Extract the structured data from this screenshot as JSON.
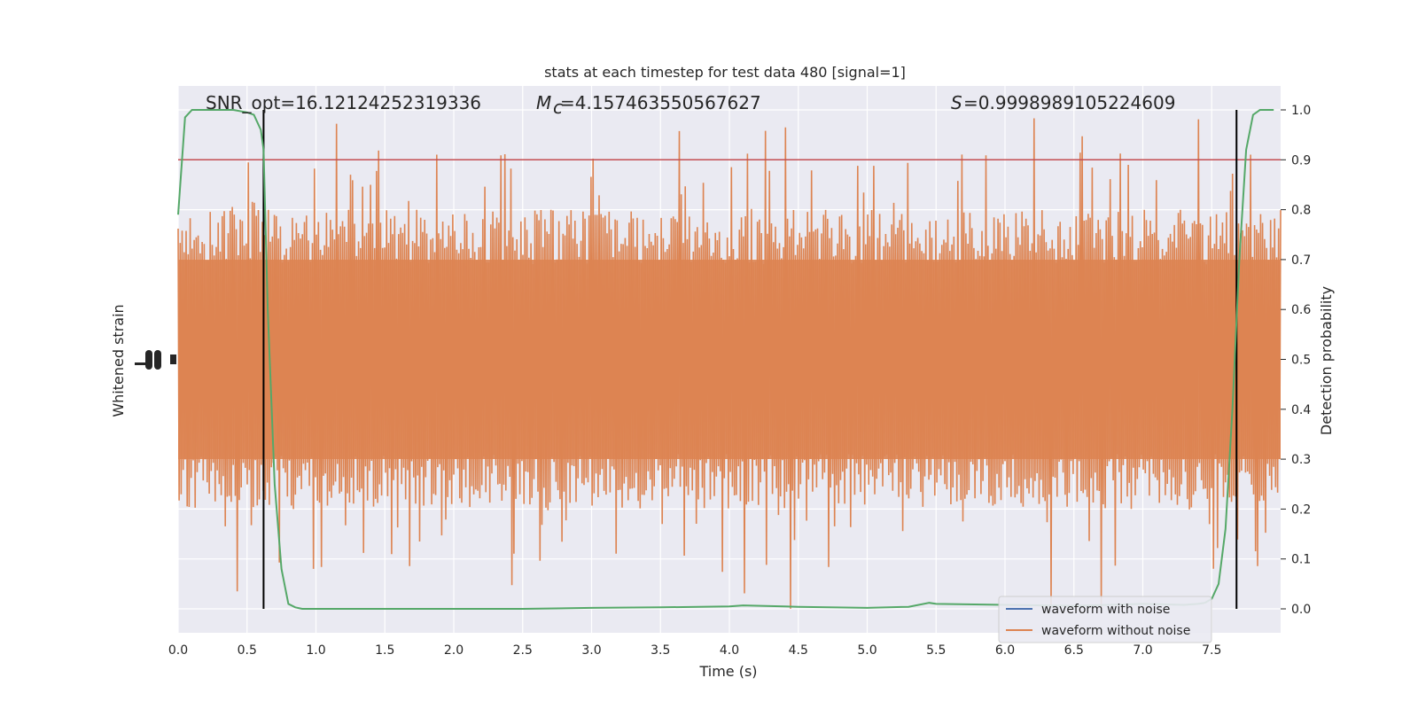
{
  "chart_data": {
    "type": "line",
    "title": "stats at each timestep for test data 480 [signal=1]",
    "annotations": {
      "snr": "SNR_opt=16.12124252319336",
      "mc": "=4.157463550567627",
      "s": "=0.9998989105224609"
    },
    "xlabel": "Time (s)",
    "ylabel_left": "Whitened strain",
    "ylabel_right": "Detection probability",
    "xlim": [
      0.0,
      8.0
    ],
    "ylim_right": [
      -0.05,
      1.05
    ],
    "xticks": [
      "0.0",
      "0.5",
      "1.0",
      "1.5",
      "2.0",
      "2.5",
      "3.0",
      "3.5",
      "4.0",
      "4.5",
      "5.0",
      "5.5",
      "6.0",
      "6.5",
      "7.0",
      "7.5"
    ],
    "yticks_right": [
      "0.0",
      "0.1",
      "0.2",
      "0.3",
      "0.4",
      "0.5",
      "0.6",
      "0.7",
      "0.8",
      "0.9",
      "1.0"
    ],
    "threshold": 0.9,
    "vlines": [
      0.62,
      7.68
    ],
    "legend": {
      "location": "lower-right",
      "entries": [
        "waveform with noise",
        "waveform without noise"
      ]
    },
    "colors": {
      "background": "#eaeaf2",
      "grid": "#ffffff",
      "noise": "#4c72b0",
      "clean": "#dd8452",
      "prob": "#55a868",
      "threshold": "#c44e52",
      "vline": "#000000"
    },
    "grid": true,
    "detection_probability": {
      "x": [
        0.0,
        0.05,
        0.1,
        0.15,
        0.2,
        0.3,
        0.4,
        0.5,
        0.55,
        0.6,
        0.62,
        0.65,
        0.7,
        0.75,
        0.8,
        0.85,
        0.9,
        1.0,
        1.5,
        2.0,
        2.5,
        3.0,
        3.5,
        4.0,
        4.1,
        4.5,
        5.0,
        5.3,
        5.45,
        5.5,
        6.0,
        6.5,
        7.0,
        7.3,
        7.4,
        7.45,
        7.5,
        7.55,
        7.6,
        7.65,
        7.7,
        7.75,
        7.8,
        7.85,
        7.9,
        7.95
      ],
      "y": [
        0.79,
        0.985,
        1.0,
        1.0,
        1.0,
        1.0,
        1.0,
        0.995,
        0.99,
        0.96,
        0.92,
        0.6,
        0.25,
        0.08,
        0.01,
        0.003,
        0.0,
        0.0,
        0.0,
        0.0,
        0.0,
        0.002,
        0.003,
        0.005,
        0.007,
        0.004,
        0.002,
        0.004,
        0.012,
        0.01,
        0.008,
        0.006,
        0.01,
        0.008,
        0.01,
        0.012,
        0.02,
        0.05,
        0.16,
        0.4,
        0.7,
        0.92,
        0.99,
        1.0,
        1.0,
        1.0
      ]
    }
  }
}
